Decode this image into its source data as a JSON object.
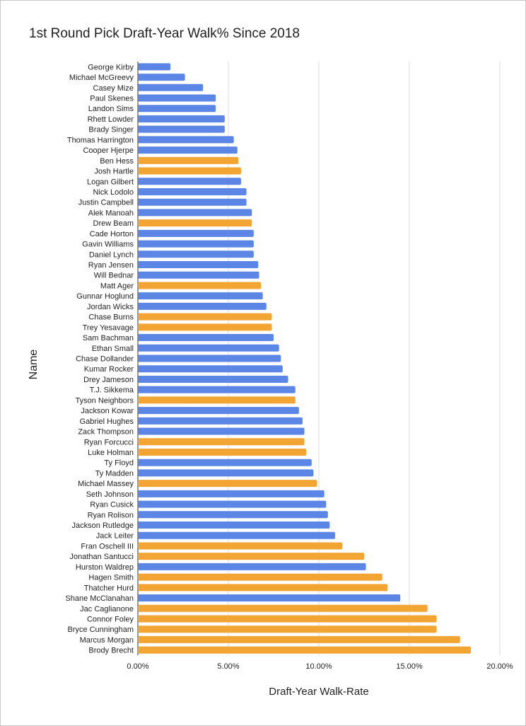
{
  "chart_data": {
    "type": "bar",
    "orientation": "horizontal",
    "title": "1st Round Pick Draft-Year Walk% Since 2018",
    "xlabel": "Draft-Year Walk-Rate",
    "ylabel": "Name",
    "xlim": [
      0,
      0.2
    ],
    "x_ticks": [
      0,
      0.05,
      0.1,
      0.15,
      0.2
    ],
    "x_tick_labels": [
      "0.00%",
      "5.00%",
      "10.00%",
      "15.00%",
      "20.00%"
    ],
    "grid": true,
    "legend": "none",
    "colors": {
      "blue": "#5b86e5",
      "orange": "#f2a533",
      "grid": "#dddddd",
      "axis": "#333333"
    },
    "categories": [
      "George Kirby",
      "Michael McGreevy",
      "Casey Mize",
      "Paul Skenes",
      "Landon Sims",
      "Rhett Lowder",
      "Brady Singer",
      "Thomas Harrington",
      "Cooper Hjerpe",
      "Ben Hess",
      "Josh Hartle",
      "Logan Gilbert",
      "Nick Lodolo",
      "Justin Campbell",
      "Alek Manoah",
      "Drew Beam",
      "Cade Horton",
      "Gavin Williams",
      "Daniel Lynch",
      "Ryan Jensen",
      "Will Bednar",
      "Matt Ager",
      "Gunnar Hoglund",
      "Jordan Wicks",
      "Chase Burns",
      "Trey Yesavage",
      "Sam Bachman",
      "Ethan Small",
      "Chase Dollander",
      "Kumar Rocker",
      "Drey Jameson",
      "T.J. Sikkema",
      "Tyson Neighbors",
      "Jackson Kowar",
      "Gabriel Hughes",
      "Zack Thompson",
      "Ryan Forcucci",
      "Luke Holman",
      "Ty Floyd",
      "Ty Madden",
      "Michael Massey",
      "Seth Johnson",
      "Ryan Cusick",
      "Ryan Rolison",
      "Jackson Rutledge",
      "Jack Leiter",
      "Fran Oschell III",
      "Jonathan Santucci",
      "Hurston Waldrep",
      "Hagen Smith",
      "Thatcher Hurd",
      "Shane McClanahan",
      "Jac Caglianone",
      "Connor Foley",
      "Bryce Cunningham",
      "Marcus Morgan",
      "Brody Brecht"
    ],
    "values": [
      0.018,
      0.026,
      0.036,
      0.043,
      0.043,
      0.048,
      0.048,
      0.053,
      0.055,
      0.0555,
      0.057,
      0.057,
      0.06,
      0.06,
      0.063,
      0.063,
      0.064,
      0.064,
      0.064,
      0.0665,
      0.067,
      0.068,
      0.069,
      0.071,
      0.074,
      0.074,
      0.075,
      0.078,
      0.079,
      0.08,
      0.083,
      0.087,
      0.087,
      0.089,
      0.091,
      0.092,
      0.092,
      0.093,
      0.096,
      0.097,
      0.099,
      0.103,
      0.104,
      0.105,
      0.106,
      0.109,
      0.113,
      0.125,
      0.126,
      0.135,
      0.138,
      0.145,
      0.16,
      0.165,
      0.165,
      0.178,
      0.184
    ],
    "bar_colors": [
      "blue",
      "blue",
      "blue",
      "blue",
      "blue",
      "blue",
      "blue",
      "blue",
      "blue",
      "orange",
      "orange",
      "blue",
      "blue",
      "blue",
      "blue",
      "orange",
      "blue",
      "blue",
      "blue",
      "blue",
      "blue",
      "orange",
      "blue",
      "blue",
      "orange",
      "orange",
      "blue",
      "blue",
      "blue",
      "blue",
      "blue",
      "blue",
      "orange",
      "blue",
      "blue",
      "blue",
      "orange",
      "orange",
      "blue",
      "blue",
      "orange",
      "blue",
      "blue",
      "blue",
      "blue",
      "blue",
      "orange",
      "orange",
      "blue",
      "orange",
      "orange",
      "blue",
      "orange",
      "orange",
      "orange",
      "orange",
      "orange"
    ]
  }
}
